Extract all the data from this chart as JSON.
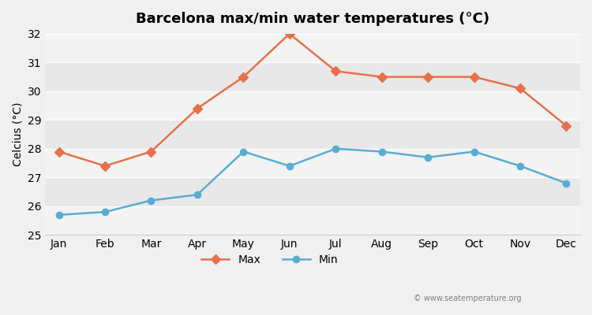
{
  "title": "Barcelona max/min water temperatures (°C)",
  "xlabel": "",
  "ylabel": "Celcius (°C)",
  "months": [
    "Jan",
    "Feb",
    "Mar",
    "Apr",
    "May",
    "Jun",
    "Jul",
    "Aug",
    "Sep",
    "Oct",
    "Nov",
    "Dec"
  ],
  "max_temps": [
    27.9,
    27.4,
    27.9,
    29.4,
    30.5,
    32.0,
    30.7,
    30.5,
    30.5,
    30.5,
    30.1,
    28.8
  ],
  "min_temps": [
    25.7,
    25.8,
    26.2,
    26.4,
    27.9,
    27.4,
    28.0,
    27.9,
    27.7,
    27.9,
    27.4,
    26.8
  ],
  "max_color": "#e8704a",
  "min_color": "#5bacd4",
  "background_color": "#f0f0f0",
  "plot_bg_color": "#e8e8e8",
  "ylim": [
    25,
    32
  ],
  "yticks": [
    25,
    26,
    27,
    28,
    29,
    30,
    31,
    32
  ],
  "watermark": "© www.seatemperature.org",
  "legend_max": "Max",
  "legend_min": "Min"
}
